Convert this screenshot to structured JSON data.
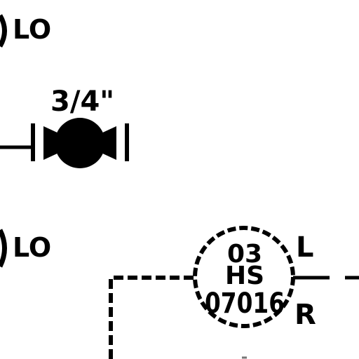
{
  "diagram": {
    "top_label": "LO",
    "valve": {
      "size_label": "3/4\""
    },
    "bottom_label": "LO",
    "hand_switch": {
      "line1": "03",
      "line2": "HS",
      "line3": "07016",
      "side_top": "L",
      "side_bottom": "R"
    }
  },
  "colors": {
    "ink": "#000000",
    "background": "#ffffff"
  }
}
